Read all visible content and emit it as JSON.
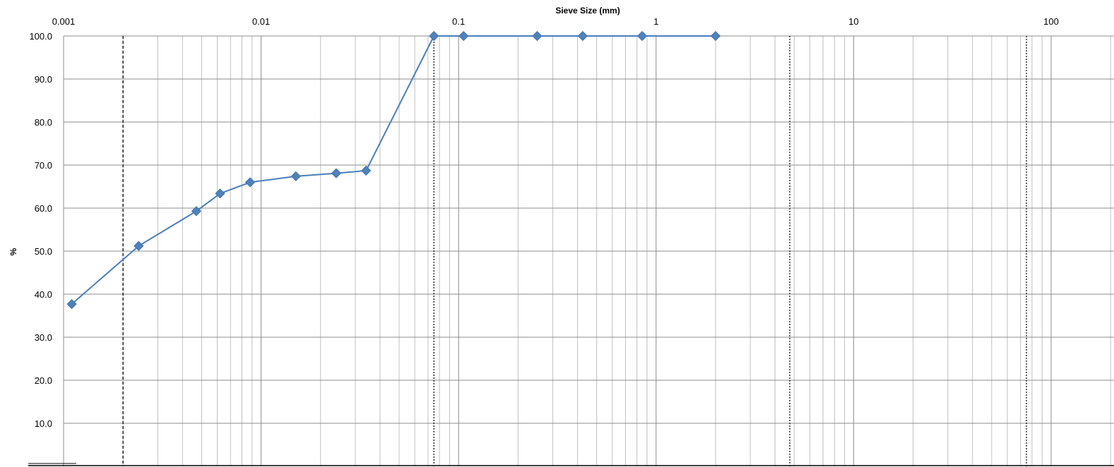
{
  "chart_data": {
    "type": "line",
    "title": "",
    "xlabel": "Sieve Size (mm)",
    "ylabel": "%",
    "x_scale": "log",
    "xlim": [
      0.001,
      200
    ],
    "ylim": [
      0,
      100
    ],
    "x_ticks": [
      {
        "value": 0.001,
        "label": "0.001"
      },
      {
        "value": 0.01,
        "label": "0.01"
      },
      {
        "value": 0.1,
        "label": "0.1"
      },
      {
        "value": 1,
        "label": "1"
      },
      {
        "value": 10,
        "label": "10"
      },
      {
        "value": 100,
        "label": "100"
      }
    ],
    "y_ticks": [
      {
        "value": 10,
        "label": "10.0"
      },
      {
        "value": 20,
        "label": "20.0"
      },
      {
        "value": 30,
        "label": "30.0"
      },
      {
        "value": 40,
        "label": "40.0"
      },
      {
        "value": 50,
        "label": "50.0"
      },
      {
        "value": 60,
        "label": "60.0"
      },
      {
        "value": 70,
        "label": "70.0"
      },
      {
        "value": 80,
        "label": "80.0"
      },
      {
        "value": 90,
        "label": "90.0"
      },
      {
        "value": 100,
        "label": "100.0"
      }
    ],
    "grid": true,
    "series": [
      {
        "x": [
          0.0011,
          0.0024,
          0.0047,
          0.0062,
          0.0088,
          0.015,
          0.024,
          0.034,
          0.075,
          0.106,
          0.25,
          0.425,
          0.85,
          2.0
        ],
        "y": [
          37.7,
          51.2,
          59.3,
          63.4,
          66.0,
          67.4,
          68.1,
          68.7,
          100.0,
          100.0,
          100.0,
          100.0,
          100.0,
          100.0
        ]
      }
    ],
    "boundary_lines": [
      {
        "x": 0.002,
        "style": "dashed"
      },
      {
        "x": 0.075,
        "style": "dotted"
      },
      {
        "x": 4.75,
        "style": "dotted"
      },
      {
        "x": 75,
        "style": "dotted"
      }
    ],
    "colors": {
      "series": "#4a7ebb",
      "marker": "#4f81bd",
      "grid": "#bfbfbf",
      "grid_major": "#8c8c8c",
      "axis": "#000000"
    }
  }
}
